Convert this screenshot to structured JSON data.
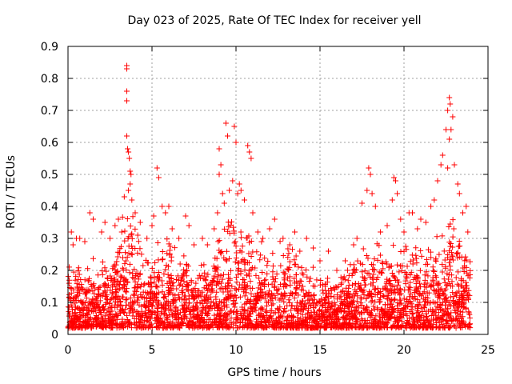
{
  "chart_data": {
    "type": "scatter",
    "title": "Day 023 of 2025, Rate Of TEC Index for receiver yell",
    "xlabel": "GPS time / hours",
    "ylabel": "ROTI / TECUs",
    "xlim": [
      0,
      25
    ],
    "ylim": [
      0,
      0.9
    ],
    "xticks": [
      "0",
      "5",
      "10",
      "15",
      "20",
      "25"
    ],
    "yticks": [
      "0",
      "0.1",
      "0.2",
      "0.3",
      "0.4",
      "0.5",
      "0.6",
      "0.7",
      "0.8",
      "0.9"
    ],
    "grid": true,
    "marker": "plus",
    "color": "#ff0000",
    "series": [
      {
        "name": "ROTI",
        "points": [
          [
            0.1,
            0.03
          ],
          [
            0.2,
            0.32
          ],
          [
            0.3,
            0.28
          ],
          [
            0.5,
            0.3
          ],
          [
            0.7,
            0.3
          ],
          [
            1.0,
            0.29
          ],
          [
            1.3,
            0.38
          ],
          [
            1.5,
            0.36
          ],
          [
            2.0,
            0.32
          ],
          [
            2.2,
            0.35
          ],
          [
            2.5,
            0.3
          ],
          [
            2.8,
            0.34
          ],
          [
            3.0,
            0.36
          ],
          [
            3.2,
            0.32
          ],
          [
            3.35,
            0.43
          ],
          [
            3.5,
            0.84
          ],
          [
            3.5,
            0.83
          ],
          [
            3.5,
            0.76
          ],
          [
            3.5,
            0.73
          ],
          [
            3.5,
            0.62
          ],
          [
            3.55,
            0.58
          ],
          [
            3.6,
            0.57
          ],
          [
            3.65,
            0.55
          ],
          [
            3.7,
            0.51
          ],
          [
            3.75,
            0.5
          ],
          [
            3.6,
            0.45
          ],
          [
            3.7,
            0.47
          ],
          [
            3.8,
            0.42
          ],
          [
            4.0,
            0.38
          ],
          [
            4.3,
            0.35
          ],
          [
            4.7,
            0.3
          ],
          [
            5.0,
            0.34
          ],
          [
            5.1,
            0.37
          ],
          [
            5.3,
            0.52
          ],
          [
            5.4,
            0.49
          ],
          [
            5.6,
            0.4
          ],
          [
            5.8,
            0.38
          ],
          [
            6.0,
            0.4
          ],
          [
            6.2,
            0.33
          ],
          [
            6.6,
            0.3
          ],
          [
            7.0,
            0.37
          ],
          [
            7.2,
            0.34
          ],
          [
            7.5,
            0.28
          ],
          [
            8.0,
            0.3
          ],
          [
            8.3,
            0.28
          ],
          [
            8.7,
            0.33
          ],
          [
            8.9,
            0.38
          ],
          [
            9.0,
            0.58
          ],
          [
            9.1,
            0.53
          ],
          [
            9.0,
            0.5
          ],
          [
            9.2,
            0.44
          ],
          [
            9.3,
            0.41
          ],
          [
            9.4,
            0.66
          ],
          [
            9.5,
            0.62
          ],
          [
            9.6,
            0.45
          ],
          [
            9.8,
            0.48
          ],
          [
            9.9,
            0.65
          ],
          [
            10.0,
            0.6
          ],
          [
            10.1,
            0.44
          ],
          [
            10.2,
            0.47
          ],
          [
            10.3,
            0.45
          ],
          [
            10.5,
            0.42
          ],
          [
            10.7,
            0.59
          ],
          [
            10.8,
            0.57
          ],
          [
            10.9,
            0.55
          ],
          [
            11.0,
            0.38
          ],
          [
            11.3,
            0.32
          ],
          [
            11.6,
            0.3
          ],
          [
            12.0,
            0.33
          ],
          [
            12.3,
            0.36
          ],
          [
            12.8,
            0.3
          ],
          [
            13.2,
            0.28
          ],
          [
            13.5,
            0.32
          ],
          [
            13.8,
            0.26
          ],
          [
            14.2,
            0.3
          ],
          [
            14.6,
            0.27
          ],
          [
            15.0,
            0.23
          ],
          [
            15.5,
            0.26
          ],
          [
            16.0,
            0.2
          ],
          [
            16.5,
            0.23
          ],
          [
            17.0,
            0.28
          ],
          [
            17.2,
            0.3
          ],
          [
            17.5,
            0.41
          ],
          [
            17.8,
            0.45
          ],
          [
            17.9,
            0.52
          ],
          [
            18.0,
            0.5
          ],
          [
            18.1,
            0.44
          ],
          [
            18.3,
            0.4
          ],
          [
            18.6,
            0.32
          ],
          [
            19.0,
            0.34
          ],
          [
            19.3,
            0.42
          ],
          [
            19.4,
            0.49
          ],
          [
            19.5,
            0.48
          ],
          [
            19.6,
            0.44
          ],
          [
            19.8,
            0.36
          ],
          [
            20.0,
            0.32
          ],
          [
            20.3,
            0.38
          ],
          [
            20.5,
            0.38
          ],
          [
            20.8,
            0.33
          ],
          [
            21.0,
            0.36
          ],
          [
            21.3,
            0.35
          ],
          [
            21.6,
            0.4
          ],
          [
            21.8,
            0.42
          ],
          [
            22.0,
            0.48
          ],
          [
            22.2,
            0.53
          ],
          [
            22.3,
            0.56
          ],
          [
            22.5,
            0.64
          ],
          [
            22.6,
            0.7
          ],
          [
            22.7,
            0.74
          ],
          [
            22.75,
            0.72
          ],
          [
            22.8,
            0.64
          ],
          [
            22.7,
            0.61
          ],
          [
            22.9,
            0.68
          ],
          [
            22.6,
            0.52
          ],
          [
            23.0,
            0.53
          ],
          [
            23.2,
            0.47
          ],
          [
            23.3,
            0.44
          ],
          [
            23.5,
            0.38
          ],
          [
            23.7,
            0.4
          ],
          [
            23.8,
            0.32
          ]
        ]
      }
    ]
  }
}
